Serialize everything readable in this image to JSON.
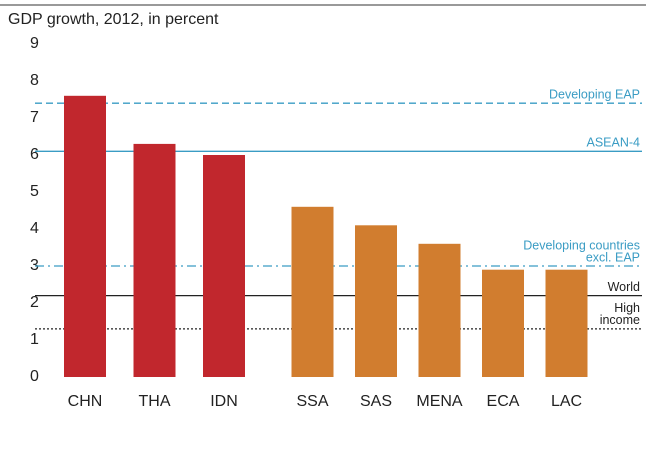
{
  "chart_data": {
    "type": "bar",
    "title": "GDP growth, 2012, in percent",
    "categories": [
      "CHN",
      "THA",
      "IDN",
      "SSA",
      "SAS",
      "MENA",
      "ECA",
      "LAC"
    ],
    "values": [
      7.6,
      6.3,
      6.0,
      4.6,
      4.1,
      3.6,
      2.9,
      2.9
    ],
    "colors": [
      "#c1272d",
      "#c1272d",
      "#c1272d",
      "#d17d2f",
      "#d17d2f",
      "#d17d2f",
      "#d17d2f",
      "#d17d2f"
    ],
    "ylim": [
      0,
      9
    ],
    "yticks": [
      0,
      1,
      2,
      3,
      4,
      5,
      6,
      7,
      8,
      9
    ],
    "grid": false,
    "reference_lines": [
      {
        "label": [
          "Developing EAP"
        ],
        "value": 7.4,
        "color": "#3a9cc4",
        "style": "dashed"
      },
      {
        "label": [
          "ASEAN-4"
        ],
        "value": 6.1,
        "color": "#3a9cc4",
        "style": "solid"
      },
      {
        "label": [
          "Developing countries",
          "excl. EAP"
        ],
        "value": 3.0,
        "color": "#3a9cc4",
        "style": "dashdot"
      },
      {
        "label": [
          "World"
        ],
        "value": 2.2,
        "color": "#222222",
        "style": "solid"
      },
      {
        "label": [
          "High",
          "income"
        ],
        "value": 1.3,
        "color": "#222222",
        "style": "dotted"
      }
    ]
  }
}
